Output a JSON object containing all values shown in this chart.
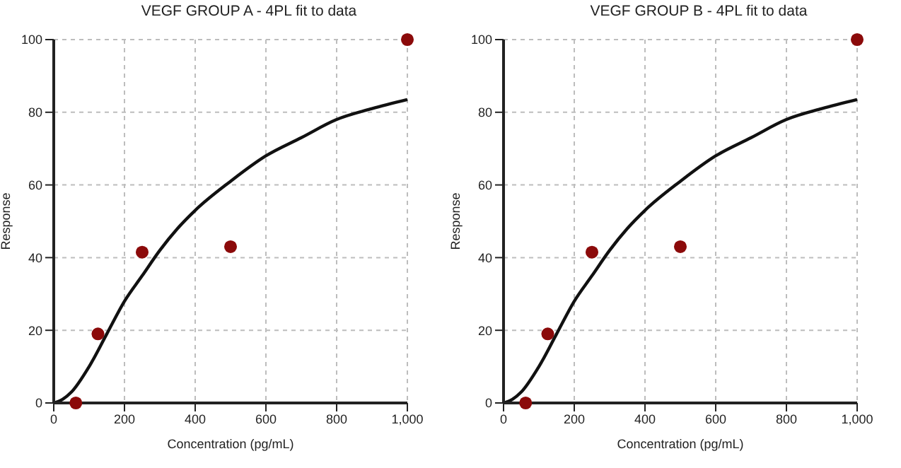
{
  "chart_data": [
    {
      "type": "scatter",
      "title": "VEGF GROUP A - 4PL fit to data",
      "xlabel": "Concentration (pg/mL)",
      "ylabel": "Response",
      "xlim": [
        0,
        1000
      ],
      "xticks": [
        0,
        200,
        400,
        600,
        800,
        {
          "value": 1000,
          "label": "1,000"
        }
      ],
      "ylim": [
        0,
        100
      ],
      "yticks": [
        0,
        20,
        40,
        60,
        80,
        100
      ],
      "grid": true,
      "series": [
        {
          "marker": "circle",
          "color": "#8b0a0a",
          "x": [
            62.5,
            125,
            250,
            500,
            1000
          ],
          "values": [
            0,
            19,
            41.5,
            43,
            100
          ]
        },
        {
          "type": "line",
          "marker": "none",
          "color": "#111111",
          "x": [
            0,
            25,
            50,
            100,
            150,
            200,
            250,
            300,
            350,
            400,
            500,
            600,
            700,
            800,
            900,
            1000
          ],
          "values": [
            0,
            1,
            3,
            10,
            19,
            28,
            35,
            42,
            48,
            53,
            61,
            68,
            73,
            78,
            81,
            83.5
          ]
        }
      ]
    },
    {
      "type": "scatter",
      "title": "VEGF GROUP B - 4PL fit to data",
      "xlabel": "Concentration (pg/mL)",
      "ylabel": "Response",
      "xlim": [
        0,
        1000
      ],
      "xticks": [
        0,
        200,
        400,
        600,
        800,
        {
          "value": 1000,
          "label": "1,000"
        }
      ],
      "ylim": [
        0,
        100
      ],
      "yticks": [
        0,
        20,
        40,
        60,
        80,
        100
      ],
      "grid": true,
      "series": [
        {
          "marker": "circle",
          "color": "#8b0a0a",
          "x": [
            62.5,
            125,
            250,
            500,
            1000
          ],
          "values": [
            0,
            19,
            41.5,
            43,
            100
          ]
        },
        {
          "type": "line",
          "marker": "none",
          "color": "#111111",
          "x": [
            0,
            25,
            50,
            100,
            150,
            200,
            250,
            300,
            350,
            400,
            500,
            600,
            700,
            800,
            900,
            1000
          ],
          "values": [
            0,
            1,
            3,
            10,
            19,
            28,
            35,
            42,
            48,
            53,
            61,
            68,
            73,
            78,
            81,
            83.5
          ]
        }
      ]
    }
  ]
}
